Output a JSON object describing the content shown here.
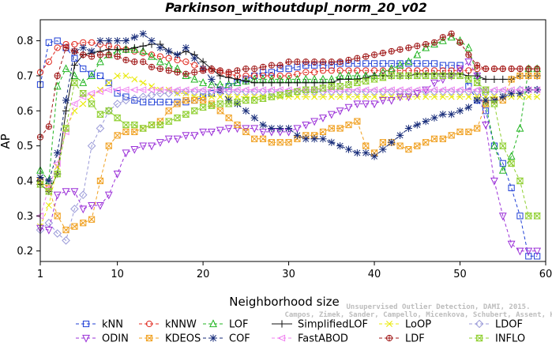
{
  "chart_data": {
    "type": "line",
    "title": "Parkinson_withoutdupl_norm_20_v02",
    "xlabel": "Neighborhood size",
    "ylabel": "AP",
    "xlim": [
      1,
      60
    ],
    "ylim": [
      0.17,
      0.86
    ],
    "xticks": [
      1,
      10,
      20,
      30,
      40,
      50,
      60
    ],
    "yticks": [
      0.2,
      0.3,
      0.4,
      0.5,
      0.6,
      0.7,
      0.8
    ],
    "grid": false,
    "legend_position": "bottom",
    "x": [
      1,
      2,
      3,
      4,
      5,
      6,
      7,
      8,
      9,
      10,
      11,
      12,
      13,
      14,
      15,
      16,
      17,
      18,
      19,
      20,
      21,
      22,
      23,
      24,
      25,
      26,
      27,
      28,
      29,
      30,
      31,
      32,
      33,
      34,
      35,
      36,
      37,
      38,
      39,
      40,
      41,
      42,
      43,
      44,
      45,
      46,
      47,
      48,
      49,
      50,
      51,
      52,
      53,
      54,
      55,
      56,
      57,
      58,
      59
    ],
    "series": [
      {
        "name": "kNN",
        "color": "#1f3fd6",
        "dash": "4,3",
        "marker": "square",
        "values": [
          0.675,
          0.795,
          0.8,
          0.78,
          0.75,
          0.72,
          0.705,
          0.7,
          0.68,
          0.65,
          0.64,
          0.63,
          0.625,
          0.625,
          0.625,
          0.625,
          0.625,
          0.625,
          0.63,
          0.64,
          0.65,
          0.66,
          0.67,
          0.68,
          0.69,
          0.7,
          0.71,
          0.71,
          0.72,
          0.72,
          0.725,
          0.73,
          0.73,
          0.73,
          0.73,
          0.735,
          0.735,
          0.735,
          0.735,
          0.735,
          0.735,
          0.735,
          0.735,
          0.735,
          0.735,
          0.735,
          0.735,
          0.73,
          0.73,
          0.73,
          0.67,
          0.63,
          0.6,
          0.5,
          0.45,
          0.38,
          0.3,
          0.185,
          0.185
        ]
      },
      {
        "name": "kNNW",
        "color": "#e0281e",
        "dash": "4,3",
        "marker": "circle",
        "values": [
          0.71,
          0.74,
          0.78,
          0.79,
          0.79,
          0.795,
          0.795,
          0.79,
          0.785,
          0.78,
          0.775,
          0.77,
          0.765,
          0.76,
          0.755,
          0.75,
          0.745,
          0.74,
          0.73,
          0.72,
          0.715,
          0.71,
          0.705,
          0.7,
          0.7,
          0.7,
          0.7,
          0.7,
          0.7,
          0.7,
          0.705,
          0.71,
          0.71,
          0.715,
          0.715,
          0.715,
          0.715,
          0.715,
          0.715,
          0.715,
          0.715,
          0.715,
          0.715,
          0.715,
          0.715,
          0.715,
          0.715,
          0.715,
          0.715,
          0.715,
          0.715,
          0.72,
          0.72,
          0.72,
          0.72,
          0.72,
          0.72,
          0.72,
          0.72
        ]
      },
      {
        "name": "LOF",
        "color": "#22b522",
        "dash": "4,3",
        "marker": "triangle",
        "values": [
          0.43,
          0.4,
          0.67,
          0.72,
          0.7,
          0.68,
          0.7,
          0.74,
          0.76,
          0.77,
          0.775,
          0.775,
          0.77,
          0.755,
          0.74,
          0.73,
          0.72,
          0.7,
          0.69,
          0.68,
          0.675,
          0.675,
          0.675,
          0.68,
          0.685,
          0.69,
          0.69,
          0.69,
          0.69,
          0.69,
          0.69,
          0.69,
          0.69,
          0.69,
          0.69,
          0.7,
          0.7,
          0.7,
          0.7,
          0.7,
          0.71,
          0.72,
          0.73,
          0.74,
          0.76,
          0.78,
          0.79,
          0.8,
          0.81,
          0.8,
          0.78,
          0.7,
          0.62,
          0.5,
          0.43,
          0.47,
          0.55,
          0.72,
          0.72
        ]
      },
      {
        "name": "SimplifiedLOF",
        "color": "#111111",
        "dash": "",
        "marker": "plus",
        "values": [
          0.39,
          0.37,
          0.42,
          0.6,
          0.73,
          0.76,
          0.765,
          0.77,
          0.775,
          0.775,
          0.775,
          0.78,
          0.785,
          0.79,
          0.79,
          0.77,
          0.76,
          0.77,
          0.76,
          0.74,
          0.72,
          0.7,
          0.695,
          0.69,
          0.685,
          0.68,
          0.68,
          0.68,
          0.68,
          0.68,
          0.68,
          0.68,
          0.68,
          0.68,
          0.68,
          0.69,
          0.69,
          0.69,
          0.695,
          0.7,
          0.7,
          0.7,
          0.7,
          0.7,
          0.705,
          0.705,
          0.705,
          0.705,
          0.705,
          0.705,
          0.7,
          0.7,
          0.69,
          0.69,
          0.69,
          0.69,
          0.7,
          0.7,
          0.7
        ]
      },
      {
        "name": "LoOP",
        "color": "#e8e800",
        "dash": "4,3",
        "marker": "x",
        "values": [
          0.27,
          0.33,
          0.44,
          0.55,
          0.6,
          0.62,
          0.64,
          0.66,
          0.68,
          0.7,
          0.7,
          0.69,
          0.68,
          0.67,
          0.66,
          0.66,
          0.65,
          0.65,
          0.64,
          0.64,
          0.64,
          0.64,
          0.64,
          0.64,
          0.64,
          0.64,
          0.64,
          0.64,
          0.64,
          0.64,
          0.64,
          0.64,
          0.64,
          0.64,
          0.64,
          0.64,
          0.64,
          0.64,
          0.64,
          0.64,
          0.64,
          0.64,
          0.64,
          0.64,
          0.64,
          0.64,
          0.64,
          0.64,
          0.64,
          0.64,
          0.64,
          0.64,
          0.64,
          0.64,
          0.64,
          0.64,
          0.64,
          0.64,
          0.64
        ]
      },
      {
        "name": "LDOF",
        "color": "#9a9ad8",
        "dash": "4,3",
        "marker": "diamond",
        "values": [
          0.26,
          0.28,
          0.25,
          0.23,
          0.32,
          0.36,
          0.5,
          0.55,
          0.6,
          0.62,
          0.63,
          0.635,
          0.64,
          0.645,
          0.65,
          0.65,
          0.655,
          0.655,
          0.655,
          0.655,
          0.655,
          0.655,
          0.655,
          0.655,
          0.655,
          0.655,
          0.655,
          0.655,
          0.655,
          0.655,
          0.655,
          0.655,
          0.655,
          0.655,
          0.655,
          0.655,
          0.655,
          0.655,
          0.655,
          0.655,
          0.655,
          0.655,
          0.655,
          0.655,
          0.655,
          0.655,
          0.655,
          0.655,
          0.655,
          0.655,
          0.655,
          0.655,
          0.655,
          0.655,
          0.655,
          0.655,
          0.66,
          0.66,
          0.66
        ]
      },
      {
        "name": "ODIN",
        "color": "#9b30d8",
        "dash": "4,3",
        "marker": "triangle-down",
        "values": [
          0.265,
          0.26,
          0.36,
          0.37,
          0.37,
          0.32,
          0.33,
          0.33,
          0.36,
          0.42,
          0.48,
          0.49,
          0.5,
          0.5,
          0.51,
          0.52,
          0.52,
          0.53,
          0.53,
          0.54,
          0.54,
          0.545,
          0.55,
          0.55,
          0.55,
          0.55,
          0.54,
          0.54,
          0.54,
          0.54,
          0.55,
          0.56,
          0.57,
          0.58,
          0.59,
          0.6,
          0.61,
          0.62,
          0.62,
          0.62,
          0.63,
          0.63,
          0.64,
          0.64,
          0.65,
          0.66,
          0.68,
          0.69,
          0.7,
          0.72,
          0.74,
          0.7,
          0.56,
          0.4,
          0.3,
          0.22,
          0.2,
          0.2,
          0.2
        ]
      },
      {
        "name": "KDEOS",
        "color": "#f0a020",
        "dash": "4,3",
        "marker": "square-x",
        "values": [
          0.4,
          0.38,
          0.3,
          0.26,
          0.27,
          0.28,
          0.29,
          0.4,
          0.5,
          0.53,
          0.54,
          0.54,
          0.55,
          0.56,
          0.57,
          0.6,
          0.62,
          0.63,
          0.63,
          0.63,
          0.62,
          0.6,
          0.58,
          0.56,
          0.54,
          0.52,
          0.52,
          0.51,
          0.51,
          0.51,
          0.52,
          0.53,
          0.53,
          0.54,
          0.55,
          0.55,
          0.56,
          0.57,
          0.5,
          0.48,
          0.51,
          0.51,
          0.5,
          0.49,
          0.5,
          0.51,
          0.52,
          0.52,
          0.53,
          0.54,
          0.54,
          0.55,
          0.62,
          0.63,
          0.63,
          0.69,
          0.7,
          0.7,
          0.7
        ]
      },
      {
        "name": "COF",
        "color": "#152a78",
        "dash": "4,3",
        "marker": "asterisk",
        "values": [
          0.41,
          0.4,
          0.48,
          0.63,
          0.77,
          0.78,
          0.77,
          0.8,
          0.8,
          0.8,
          0.8,
          0.81,
          0.82,
          0.8,
          0.78,
          0.77,
          0.76,
          0.78,
          0.75,
          0.72,
          0.69,
          0.66,
          0.63,
          0.62,
          0.6,
          0.58,
          0.56,
          0.55,
          0.55,
          0.55,
          0.53,
          0.52,
          0.52,
          0.52,
          0.51,
          0.5,
          0.49,
          0.48,
          0.48,
          0.47,
          0.49,
          0.51,
          0.53,
          0.55,
          0.56,
          0.57,
          0.58,
          0.59,
          0.59,
          0.6,
          0.61,
          0.63,
          0.63,
          0.63,
          0.64,
          0.65,
          0.65,
          0.66,
          0.66
        ]
      },
      {
        "name": "FastABOD",
        "color": "#f080f0",
        "dash": "4,3",
        "marker": "triangle-left",
        "values": [
          0.3,
          0.38,
          0.45,
          0.54,
          0.62,
          0.64,
          0.65,
          0.655,
          0.66,
          0.66,
          0.66,
          0.66,
          0.66,
          0.66,
          0.66,
          0.66,
          0.66,
          0.66,
          0.66,
          0.66,
          0.66,
          0.66,
          0.66,
          0.66,
          0.66,
          0.66,
          0.66,
          0.66,
          0.66,
          0.66,
          0.66,
          0.66,
          0.66,
          0.66,
          0.66,
          0.66,
          0.66,
          0.66,
          0.66,
          0.66,
          0.66,
          0.66,
          0.66,
          0.66,
          0.66,
          0.66,
          0.66,
          0.66,
          0.66,
          0.66,
          0.66,
          0.66,
          0.66,
          0.66,
          0.66,
          0.66,
          0.66,
          0.66,
          0.66
        ]
      },
      {
        "name": "LDF",
        "color": "#a01818",
        "dash": "4,3",
        "marker": "circle-plus",
        "values": [
          0.525,
          0.555,
          0.7,
          0.78,
          0.77,
          0.76,
          0.755,
          0.76,
          0.76,
          0.755,
          0.745,
          0.74,
          0.74,
          0.725,
          0.72,
          0.715,
          0.71,
          0.705,
          0.71,
          0.715,
          0.72,
          0.715,
          0.71,
          0.715,
          0.72,
          0.72,
          0.725,
          0.73,
          0.73,
          0.74,
          0.74,
          0.74,
          0.74,
          0.74,
          0.74,
          0.74,
          0.745,
          0.75,
          0.755,
          0.76,
          0.765,
          0.77,
          0.775,
          0.78,
          0.785,
          0.79,
          0.795,
          0.81,
          0.82,
          0.795,
          0.76,
          0.73,
          0.72,
          0.72,
          0.72,
          0.72,
          0.72,
          0.72,
          0.72
        ]
      },
      {
        "name": "INFLO",
        "color": "#8fcf30",
        "dash": "4,3",
        "marker": "hourglass",
        "values": [
          0.39,
          0.37,
          0.42,
          0.55,
          0.68,
          0.65,
          0.62,
          0.59,
          0.6,
          0.58,
          0.56,
          0.56,
          0.55,
          0.56,
          0.56,
          0.57,
          0.58,
          0.59,
          0.6,
          0.61,
          0.615,
          0.62,
          0.62,
          0.625,
          0.63,
          0.63,
          0.635,
          0.64,
          0.645,
          0.65,
          0.655,
          0.66,
          0.66,
          0.665,
          0.67,
          0.67,
          0.675,
          0.68,
          0.685,
          0.69,
          0.695,
          0.7,
          0.7,
          0.7,
          0.7,
          0.7,
          0.7,
          0.7,
          0.7,
          0.7,
          0.69,
          0.68,
          0.66,
          0.62,
          0.5,
          0.45,
          0.4,
          0.3,
          0.3
        ]
      }
    ]
  },
  "watermark": {
    "line1": "Unsupervised Outlier Detection, DAMI, 2015.",
    "line2": "Campos, Zimek, Sander, Campello, Micenkova, Schubert, Assent, Houle"
  }
}
